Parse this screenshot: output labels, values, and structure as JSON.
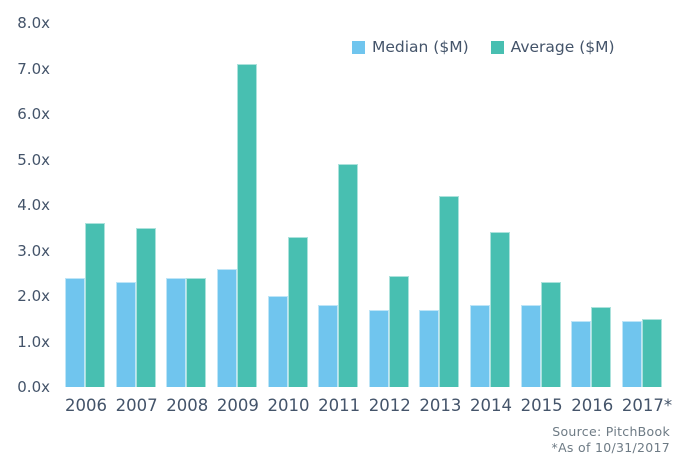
{
  "chart_data": {
    "type": "bar",
    "title": "",
    "categories": [
      "2006",
      "2007",
      "2008",
      "2009",
      "2010",
      "2011",
      "2012",
      "2013",
      "2014",
      "2015",
      "2016",
      "2017*"
    ],
    "series": [
      {
        "name": "Median ($M)",
        "color": "#70C5EE",
        "values": [
          2.4,
          2.3,
          2.4,
          2.6,
          2.0,
          1.8,
          1.7,
          1.7,
          1.8,
          1.8,
          1.45,
          1.45
        ]
      },
      {
        "name": "Average ($M)",
        "color": "#48BFB1",
        "values": [
          3.6,
          3.5,
          2.4,
          7.1,
          3.3,
          4.9,
          2.45,
          4.2,
          3.4,
          2.3,
          1.75,
          1.5
        ]
      }
    ],
    "xlabel": "",
    "ylabel": "",
    "ylim": [
      0,
      8
    ],
    "y_tick_labels": [
      "8.0x",
      "7.0x",
      "6.0x",
      "5.0x",
      "4.0x",
      "3.0x",
      "2.0x",
      "1.0x",
      "0.0x"
    ],
    "y_tick_values": [
      8,
      7,
      6,
      5,
      4,
      3,
      2,
      1,
      0
    ],
    "grid": false,
    "legend_position": "top-right",
    "source_line1": "Source: PitchBook",
    "source_line2": "*As of 10/31/2017"
  },
  "colors": {
    "median_bar": "#70C5EE",
    "average_bar": "#48BFB1",
    "axis_text": "#44546A",
    "source_text": "#6E7B85",
    "background": "#ffffff"
  }
}
